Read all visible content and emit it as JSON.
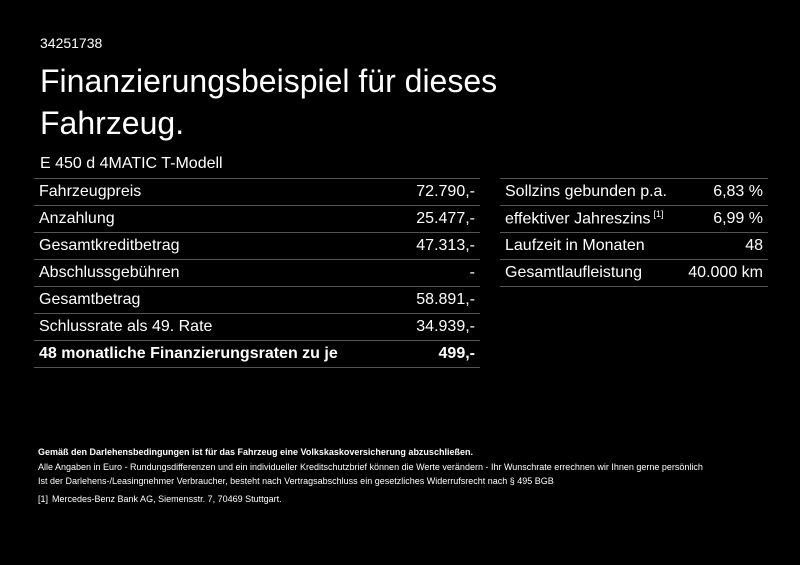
{
  "id": "34251738",
  "title": "Finanzierungsbeispiel für dieses Fahrzeug.",
  "model": "E 450 d 4MATIC T-Modell",
  "left_table": {
    "rows": [
      {
        "label": "Fahrzeugpreis",
        "value": "72.790,-"
      },
      {
        "label": "Anzahlung",
        "value": "25.477,-"
      },
      {
        "label": "Gesamtkreditbetrag",
        "value": "47.313,-"
      },
      {
        "label": "Abschlussgebühren",
        "value": "-"
      },
      {
        "label": "Gesamtbetrag",
        "value": "58.891,-"
      },
      {
        "label": "Schlussrate als 49. Rate",
        "value": "34.939,-"
      },
      {
        "label": "48 monatliche Finanzierungsraten zu je",
        "value": "499,-"
      }
    ]
  },
  "right_table": {
    "rows": [
      {
        "label": "Sollzins gebunden p.a.",
        "value": "6,83 %"
      },
      {
        "label": "effektiver Jahreszins",
        "sup": "[1]",
        "value": "6,99 %"
      },
      {
        "label": "Laufzeit in Monaten",
        "value": "48"
      },
      {
        "label": "Gesamtlaufleistung",
        "value": "40.000 km"
      }
    ]
  },
  "notes": {
    "bold": "Gemäß den Darlehensbedingungen ist für das Fahrzeug eine Volkskaskoversicherung abzuschließen.",
    "lines": [
      "Alle Angaben in Euro - Rundungsdifferenzen und ein individueller Kreditschutzbrief können die Werte verändern - Ihr Wunschrate errechnen wir Ihnen gerne persönlich",
      "Ist der Darlehens-/Leasingnehmer Verbraucher, besteht nach Vertragsabschluss ein gesetzliches Widerrufsrecht nach § 495 BGB"
    ],
    "footnote": {
      "marker": "[1]",
      "text": "Mercedes-Benz Bank AG, Siemensstr. 7, 70469 Stuttgart."
    }
  }
}
